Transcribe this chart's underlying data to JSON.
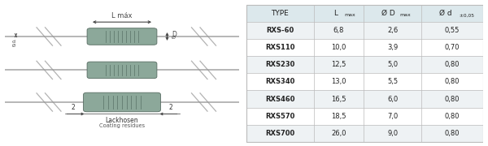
{
  "rows": [
    [
      "RXS-60",
      "6,8",
      "2,6",
      "0,55"
    ],
    [
      "RXS110",
      "10,0",
      "3,9",
      "0,70"
    ],
    [
      "RXS230",
      "12,5",
      "5,0",
      "0,80"
    ],
    [
      "RXS340",
      "13,0",
      "5,5",
      "0,80"
    ],
    [
      "RXS460",
      "16,5",
      "6,0",
      "0,80"
    ],
    [
      "RXS570",
      "18,5",
      "7,0",
      "0,80"
    ],
    [
      "RXS700",
      "26,0",
      "9,0",
      "0,80"
    ]
  ],
  "body_color": "#8ca89a",
  "stripe_color": "#607a6e",
  "lead_color": "#aaaaaa",
  "diag_color": "#999999",
  "header_bg": "#dce8ec",
  "row_bg_even": "#eef2f4",
  "row_bg_odd": "#ffffff",
  "table_line_color": "#bbbbbb",
  "text_color": "#222222",
  "annotation_color": "#444444"
}
